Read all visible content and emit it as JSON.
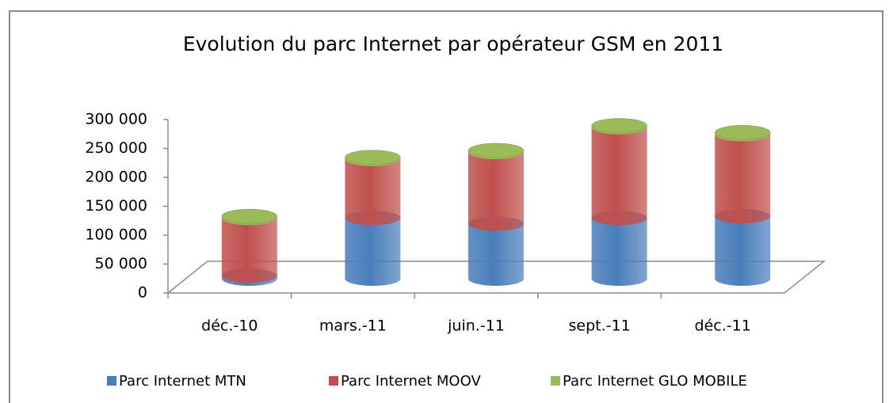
{
  "chart_data": {
    "type": "bar",
    "stacked": true,
    "title": "Evolution du parc Internet par opérateur GSM en 2011",
    "categories": [
      "déc.-10",
      "mars.-11",
      "juin.-11",
      "sept.-11",
      "déc.-11"
    ],
    "series": [
      {
        "name": "Parc Internet MTN",
        "color": "#4a7ebb",
        "values": [
          5000,
          105000,
          95000,
          105000,
          108000
        ]
      },
      {
        "name": "Parc Internet MOOV",
        "color": "#c0504d",
        "values": [
          100000,
          102000,
          124000,
          157000,
          142000
        ]
      },
      {
        "name": "Parc Internet GLO MOBILE",
        "color": "#9bbb59",
        "values": [
          3000,
          3000,
          3000,
          3000,
          3000
        ]
      }
    ],
    "ylim": [
      0,
      300000
    ],
    "yticks": [
      0,
      {
        "value": 50000,
        "label": "50 000"
      },
      {
        "value": 100000,
        "label": "100 000"
      },
      {
        "value": 150000,
        "label": "150 000"
      },
      {
        "value": 200000,
        "label": "200 000"
      },
      {
        "value": 250000,
        "label": "250 000"
      },
      {
        "value": 300000,
        "label": "300 000"
      }
    ],
    "legend": "bottom"
  }
}
